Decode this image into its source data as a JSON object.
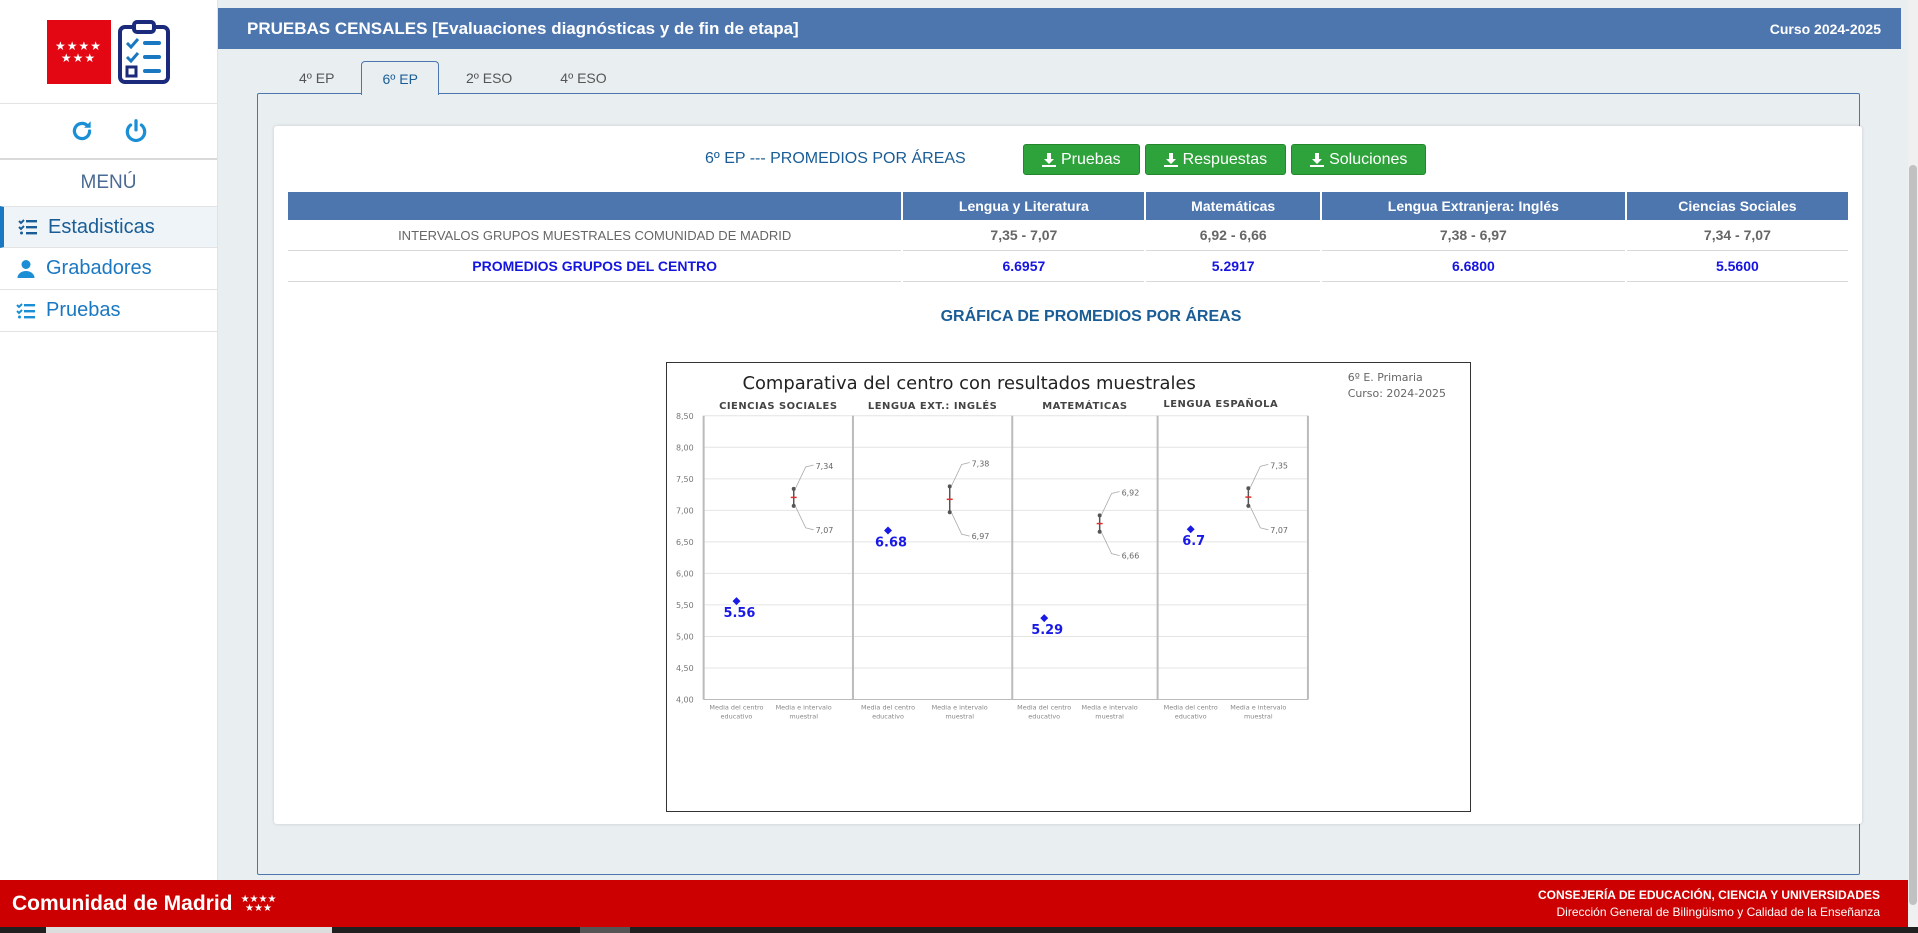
{
  "header": {
    "title": "PRUEBAS CENSALES [Evaluaciones diagnósticas y de fin de etapa]",
    "year": "Curso 2024-2025"
  },
  "sidebar": {
    "menu_title": "MENÚ",
    "refresh_icon": "refresh-icon",
    "power_icon": "power-icon",
    "items": [
      {
        "label": "Estadisticas",
        "icon": "list-check-icon",
        "active": true
      },
      {
        "label": "Grabadores",
        "icon": "user-icon",
        "active": false
      },
      {
        "label": "Pruebas",
        "icon": "list-check-icon",
        "active": false
      }
    ]
  },
  "tabs": [
    {
      "label": "4º EP",
      "active": false
    },
    {
      "label": "6º EP",
      "active": true
    },
    {
      "label": "2º ESO",
      "active": false
    },
    {
      "label": "4º ESO",
      "active": false
    }
  ],
  "card": {
    "heading": "6º EP --- PROMEDIOS POR ÁREAS",
    "buttons": {
      "pruebas": "Pruebas",
      "respuestas": "Respuestas",
      "soluciones": "Soluciones"
    }
  },
  "table": {
    "headers": [
      "Lengua y Literatura",
      "Matemáticas",
      "Lengua Extranjera: Inglés",
      "Ciencias Sociales"
    ],
    "rows": [
      {
        "label": "INTERVALOS GRUPOS MUESTRALES COMUNIDAD DE MADRID",
        "values": [
          "7,35 - 7,07",
          "6,92 - 6,66",
          "7,38 - 6,97",
          "7,34 - 7,07"
        ]
      },
      {
        "label": "PROMEDIOS GRUPOS DEL CENTRO",
        "values": [
          "6.6957",
          "5.2917",
          "6.6800",
          "5.5600"
        ]
      }
    ]
  },
  "chart_heading": "GRÁFICA DE PROMEDIOS POR ÁREAS",
  "chart_data": {
    "type": "scatter",
    "title": "Comparativa del centro con resultados muestrales",
    "subtitle": [
      "6º E. Primaria",
      "Curso: 2024-2025"
    ],
    "ylim": [
      4.0,
      8.5
    ],
    "yticks": [
      "4,00",
      "4,50",
      "5,00",
      "5,50",
      "6,00",
      "6,50",
      "7,00",
      "7,50",
      "8,00",
      "8,50"
    ],
    "x_labels": [
      "Media del centro educativo",
      "Media e intervalo muestral"
    ],
    "panels": [
      {
        "name": "CIENCIAS SOCIALES",
        "centro": 5.56,
        "centro_label": "5.56",
        "high": 7.34,
        "low": 7.07,
        "high_label": "7,34",
        "low_label": "7,07"
      },
      {
        "name": "LENGUA EXT.: INGLÉS",
        "centro": 6.68,
        "centro_label": "6.68",
        "high": 7.38,
        "low": 6.97,
        "high_label": "7,38",
        "low_label": "6,97"
      },
      {
        "name": "MATEMÁTICAS",
        "centro": 5.29,
        "centro_label": "5.29",
        "high": 6.92,
        "low": 6.66,
        "high_label": "6,92",
        "low_label": "6,66"
      },
      {
        "name": "LENGUA ESPAÑOLA",
        "centro": 6.7,
        "centro_label": "6.7",
        "high": 7.35,
        "low": 7.07,
        "high_label": "7,35",
        "low_label": "7,07"
      }
    ],
    "colors": {
      "centro": "#1a1ae6",
      "interval": "#555555",
      "mean": "#e03030"
    }
  },
  "footer": {
    "brand": "Comunidad de Madrid",
    "line1": "CONSEJERÍA DE EDUCACIÓN, CIENCIA Y UNIVERSIDADES",
    "line2": "Dirección General de Bilingüismo y Calidad de la Enseñanza"
  },
  "colors": {
    "header": "#4e76ae",
    "accent": "#1a78c2",
    "button_green": "#2fa33b",
    "footer_red": "#cc0000"
  }
}
